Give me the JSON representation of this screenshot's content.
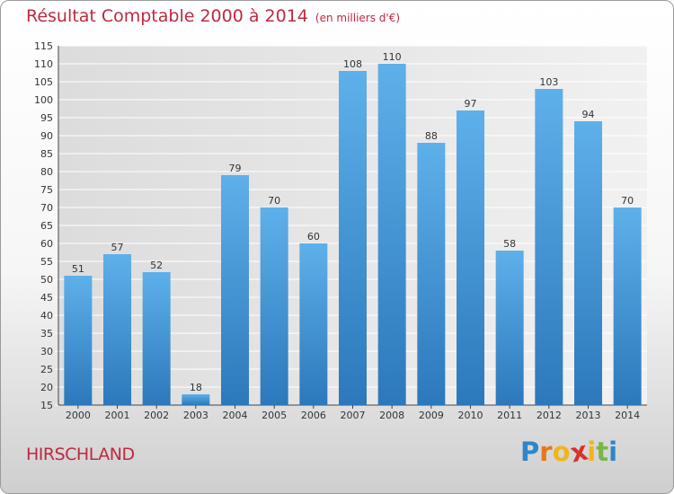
{
  "chart_data": {
    "type": "bar",
    "title": "Résultat Comptable 2000 à 2014",
    "subtitle": "(en milliers d'€)",
    "categories": [
      "2000",
      "2001",
      "2002",
      "2003",
      "2004",
      "2005",
      "2006",
      "2007",
      "2008",
      "2009",
      "2010",
      "2011",
      "2012",
      "2013",
      "2014"
    ],
    "values": [
      51,
      57,
      52,
      18,
      79,
      70,
      60,
      108,
      110,
      88,
      97,
      58,
      103,
      94,
      70
    ],
    "ylim": [
      15,
      115
    ],
    "yticks": [
      15,
      20,
      25,
      30,
      35,
      40,
      45,
      50,
      55,
      60,
      65,
      70,
      75,
      80,
      85,
      90,
      95,
      100,
      105,
      110,
      115
    ],
    "xlabel": "",
    "ylabel": "",
    "grid": true,
    "legend": "none",
    "bar_color": "#3f8fd6"
  },
  "commune": "HIRSCHLAND",
  "logo": {
    "letters": [
      "P",
      "r",
      "o",
      "x",
      "i",
      "t",
      "i"
    ],
    "colors": [
      "#2e86c9",
      "#e8761c",
      "#f1b51c",
      "#d9302c",
      "#f1b51c",
      "#7ab648",
      "#2e86c9"
    ]
  }
}
